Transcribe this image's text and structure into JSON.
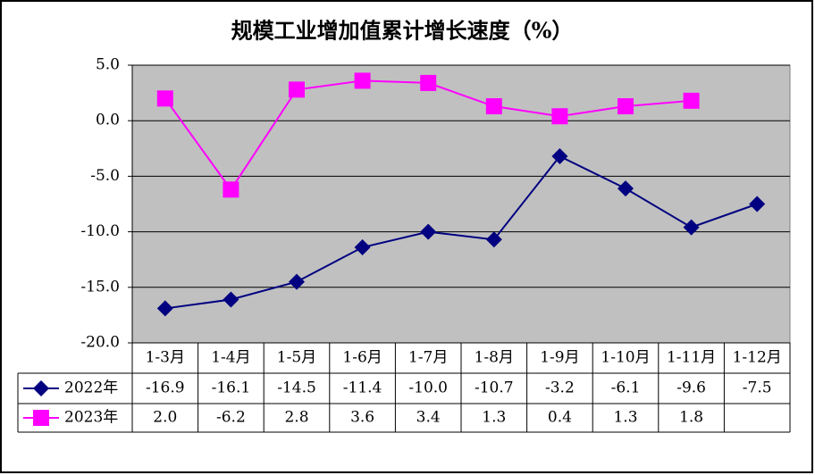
{
  "chart_data": {
    "type": "line",
    "title": "规模工业增加值累计增长速度（%）",
    "categories": [
      "1-3月",
      "1-4月",
      "1-5月",
      "1-6月",
      "1-7月",
      "1-8月",
      "1-9月",
      "1-10月",
      "1-11月",
      "1-12月"
    ],
    "series": [
      {
        "name": "2022年",
        "color": "#000080",
        "marker": "diamond",
        "values": [
          -16.9,
          -16.1,
          -14.5,
          -11.4,
          -10.0,
          -10.7,
          -3.2,
          -6.1,
          -9.6,
          -7.5
        ],
        "value_labels": [
          "-16.9",
          "-16.1",
          "-14.5",
          "-11.4",
          "-10.0",
          "-10.7",
          "-3.2",
          "-6.1",
          "-9.6",
          "-7.5"
        ]
      },
      {
        "name": "2023年",
        "color": "#ff00ff",
        "marker": "square",
        "values": [
          2.0,
          -6.2,
          2.8,
          3.6,
          3.4,
          1.3,
          0.4,
          1.3,
          1.8,
          null
        ],
        "value_labels": [
          "2.0",
          "-6.2",
          "2.8",
          "3.6",
          "3.4",
          "1.3",
          "0.4",
          "1.3",
          "1.8",
          null
        ]
      }
    ],
    "ylim": [
      -20,
      5
    ],
    "yticks": [
      {
        "value": -20,
        "label": "-20.0"
      },
      {
        "value": -15,
        "label": "-15.0"
      },
      {
        "value": -10,
        "label": "-10.0"
      },
      {
        "value": -5,
        "label": "-5.0"
      },
      {
        "value": 0,
        "label": "0.0"
      },
      {
        "value": 5,
        "label": "5.0"
      }
    ],
    "grid": true,
    "plot_background": "#c0c0c0"
  }
}
